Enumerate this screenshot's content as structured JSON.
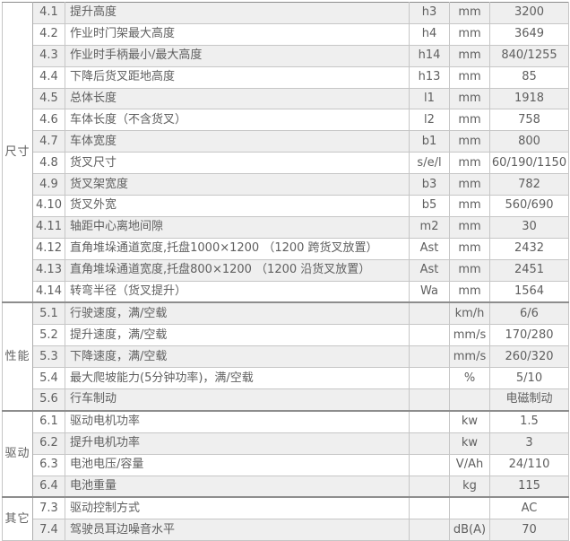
{
  "table": {
    "colors": {
      "band_background": "#efefef",
      "grid_light": "#c6c6c6",
      "grid_dark": "#8d8d8d",
      "text": "#5f5f5f"
    },
    "sections": [
      {
        "category": "尺寸",
        "rows": [
          {
            "no": "4.1",
            "desc": "提升高度",
            "sym": "h3",
            "unit": "mm",
            "value": "3200"
          },
          {
            "no": "4.2",
            "desc": "作业时门架最大高度",
            "sym": "h4",
            "unit": "mm",
            "value": "3649"
          },
          {
            "no": "4.3",
            "desc": "作业时手柄最小/最大高度",
            "sym": "h14",
            "unit": "mm",
            "value": "840/1255"
          },
          {
            "no": "4.4",
            "desc": "下降后货叉距地高度",
            "sym": "h13",
            "unit": "mm",
            "value": "85"
          },
          {
            "no": "4.5",
            "desc": "总体长度",
            "sym": "l1",
            "unit": "mm",
            "value": "1918"
          },
          {
            "no": "4.6",
            "desc": "车体长度（不含货叉）",
            "sym": "l2",
            "unit": "mm",
            "value": "758"
          },
          {
            "no": "4.7",
            "desc": "车体宽度",
            "sym": "b1",
            "unit": "mm",
            "value": "800"
          },
          {
            "no": "4.8",
            "desc": "货叉尺寸",
            "sym": "s/e/l",
            "unit": "mm",
            "value": "60/190/1150"
          },
          {
            "no": "4.9",
            "desc": "货叉架宽度",
            "sym": "b3",
            "unit": "mm",
            "value": "782"
          },
          {
            "no": "4.10",
            "desc": "货叉外宽",
            "sym": "b5",
            "unit": "mm",
            "value": "560/690"
          },
          {
            "no": "4.11",
            "desc": "轴距中心离地间隙",
            "sym": "m2",
            "unit": "mm",
            "value": "30"
          },
          {
            "no": "4.12",
            "desc": "直角堆垛通道宽度,托盘1000×1200 （1200 跨货叉放置）",
            "sym": "Ast",
            "unit": "mm",
            "value": "2432"
          },
          {
            "no": "4.13",
            "desc": "直角堆垛通道宽度,托盘800×1200 （1200 沿货叉放置）",
            "sym": "Ast",
            "unit": "mm",
            "value": "2451"
          },
          {
            "no": "4.14",
            "desc": "转弯半径（货叉提升）",
            "sym": "Wa",
            "unit": "mm",
            "value": "1564"
          }
        ]
      },
      {
        "category": "性能",
        "rows": [
          {
            "no": "5.1",
            "desc": "行驶速度，满/空载",
            "sym": "",
            "unit": "km/h",
            "value": "6/6"
          },
          {
            "no": "5.2",
            "desc": "提升速度，满/空载",
            "sym": "",
            "unit": "mm/s",
            "value": "170/280"
          },
          {
            "no": "5.3",
            "desc": "下降速度，满/空载",
            "sym": "",
            "unit": "mm/s",
            "value": "260/320"
          },
          {
            "no": "5.4",
            "desc": "最大爬坡能力(5分钟功率)，满/空载",
            "sym": "",
            "unit": "%",
            "value": "5/10"
          },
          {
            "no": "5.6",
            "desc": "行车制动",
            "sym": "",
            "unit": "",
            "value": "电磁制动"
          }
        ]
      },
      {
        "category": "驱动",
        "rows": [
          {
            "no": "6.1",
            "desc": "驱动电机功率",
            "sym": "",
            "unit": "kw",
            "value": "1.5"
          },
          {
            "no": "6.2",
            "desc": "提升电机功率",
            "sym": "",
            "unit": "kw",
            "value": "3"
          },
          {
            "no": "6.3",
            "desc": "电池电压/容量",
            "sym": "",
            "unit": "V/Ah",
            "value": "24/110"
          },
          {
            "no": "6.4",
            "desc": "电池重量",
            "sym": "",
            "unit": "kg",
            "value": "115"
          }
        ]
      },
      {
        "category": "其它",
        "rows": [
          {
            "no": "7.3",
            "desc": "驱动控制方式",
            "sym": "",
            "unit": "",
            "value": "AC"
          },
          {
            "no": "7.4",
            "desc": "驾驶员耳边噪音水平",
            "sym": "",
            "unit": "dB(A)",
            "value": "70"
          }
        ]
      }
    ]
  }
}
